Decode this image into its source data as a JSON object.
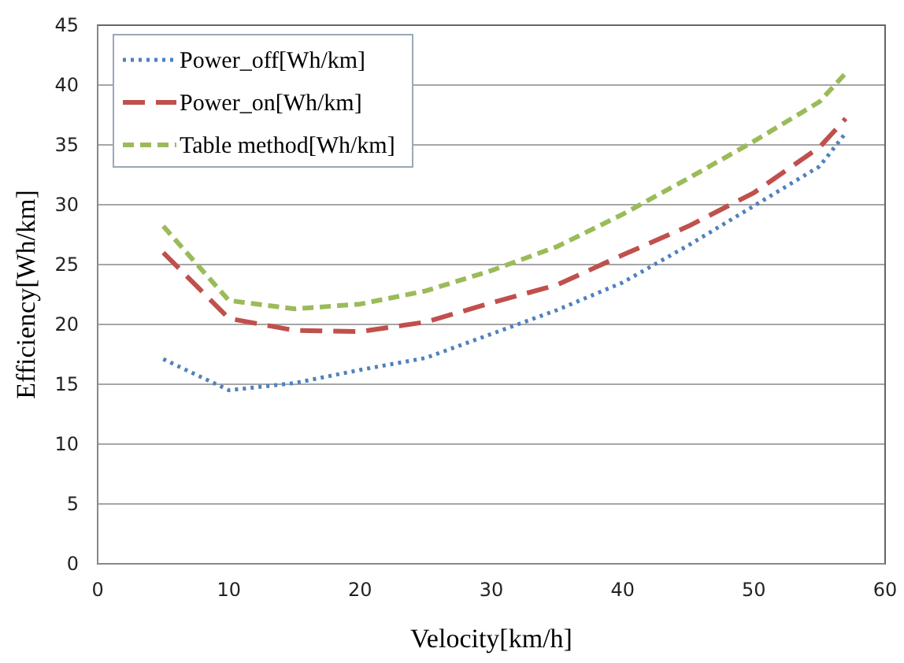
{
  "chart_data": {
    "type": "line",
    "xlabel": "Velocity[km/h]",
    "ylabel": "Efficiency[Wh/km]",
    "x": [
      5,
      10,
      15,
      20,
      25,
      30,
      35,
      40,
      45,
      50,
      55,
      57
    ],
    "series": [
      {
        "name": "Power_off[Wh/km]",
        "color": "#4f81bd",
        "line_style": "dotted",
        "values": [
          17.1,
          14.5,
          15.1,
          16.2,
          17.2,
          19.2,
          21.2,
          23.5,
          26.6,
          29.9,
          33.2,
          36
        ]
      },
      {
        "name": "Power_on[Wh/km]",
        "color": "#c0504d",
        "line_style": "dashed",
        "values": [
          26,
          20.5,
          19.5,
          19.4,
          20.2,
          21.8,
          23.3,
          25.8,
          28.2,
          31,
          34.8,
          37.2
        ]
      },
      {
        "name": "Table method[Wh/km]",
        "color": "#9bbb59",
        "line_style": "dashed",
        "values": [
          28.2,
          22,
          21.3,
          21.7,
          22.8,
          24.5,
          26.5,
          29.2,
          32.2,
          35.3,
          38.6,
          41
        ]
      }
    ],
    "xlim": [
      0,
      60
    ],
    "xticks": [
      0,
      10,
      20,
      30,
      40,
      50,
      60
    ],
    "ylim": [
      0,
      45
    ],
    "yticks": [
      0,
      5,
      10,
      15,
      20,
      25,
      30,
      35,
      40,
      45
    ],
    "grid": "y",
    "legend": "top left",
    "marker": "none"
  }
}
